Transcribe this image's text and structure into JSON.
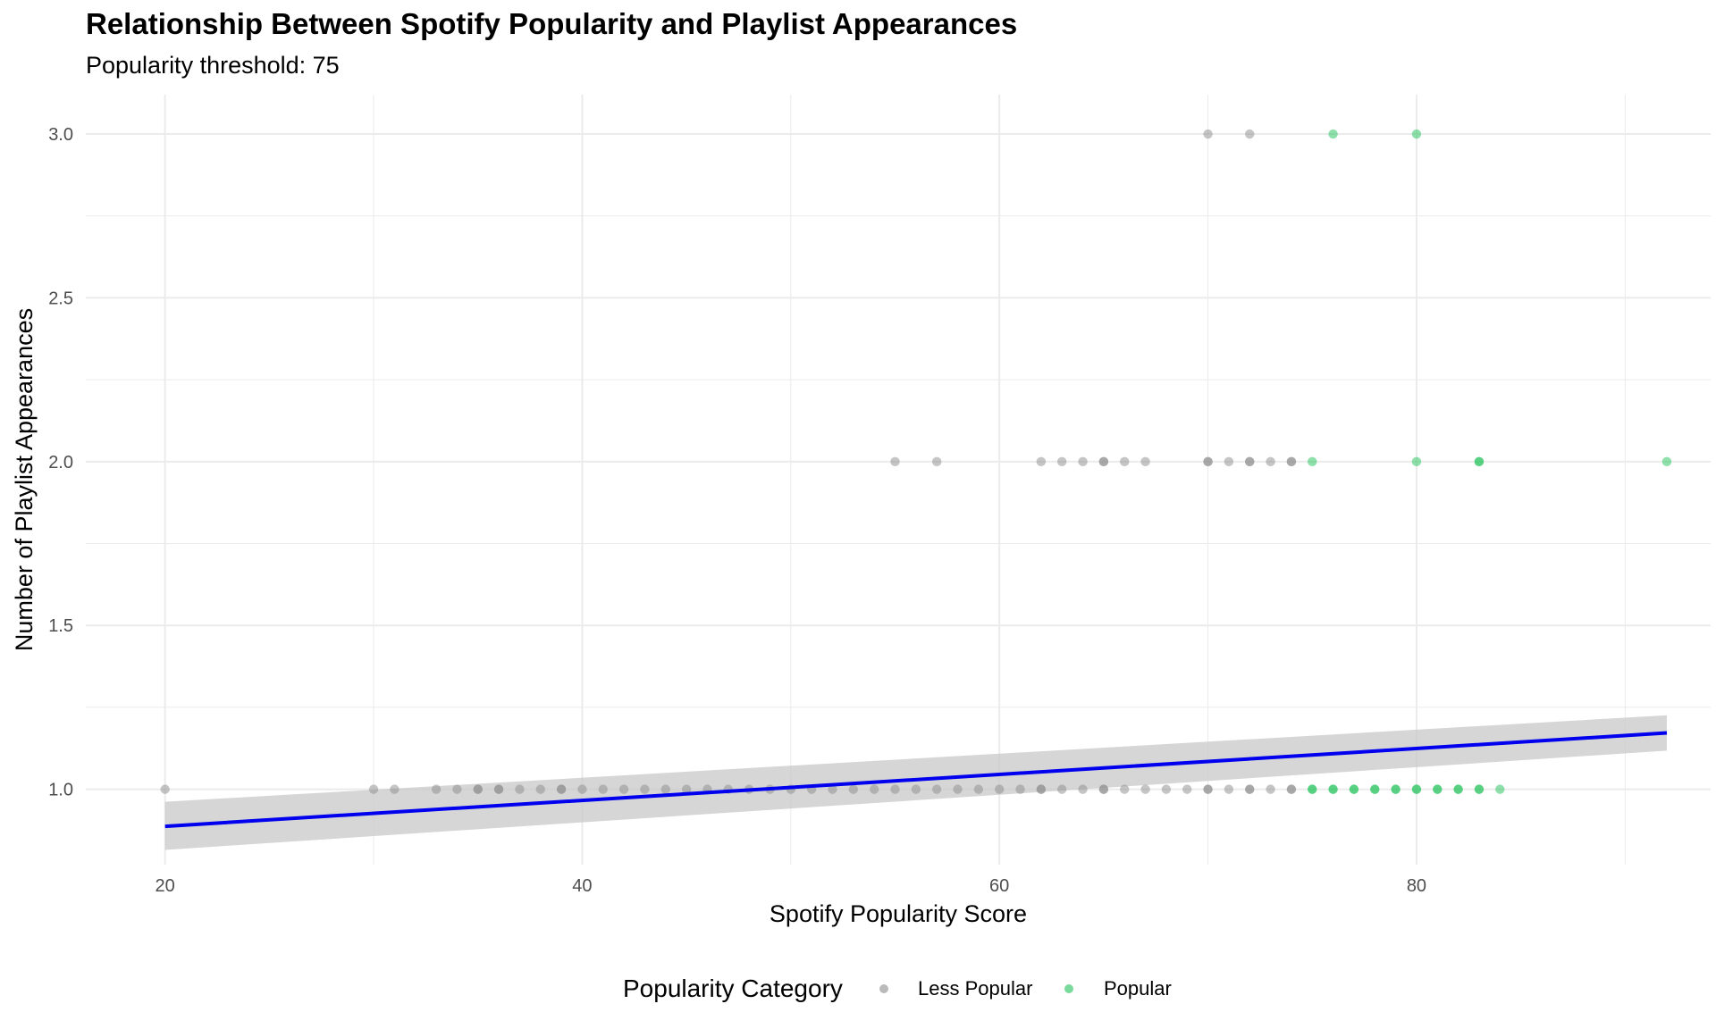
{
  "chart_data": {
    "type": "scatter",
    "title": "Relationship Between Spotify Popularity and Playlist Appearances",
    "subtitle": "Popularity threshold: 75",
    "xlabel": "Spotify Popularity Score",
    "ylabel": "Number of Playlist Appearances",
    "xlim": [
      16.2,
      94.1
    ],
    "ylim": [
      0.77,
      3.12
    ],
    "x_ticks": [
      20,
      40,
      60,
      80
    ],
    "x_tick_labels": [
      "20",
      "40",
      "60",
      "80"
    ],
    "y_ticks": [
      1.0,
      1.5,
      2.0,
      2.5,
      3.0
    ],
    "y_tick_labels": [
      "1.0",
      "1.5",
      "2.0",
      "2.5",
      "3.0"
    ],
    "grid": true,
    "legend": {
      "title": "Popularity Category",
      "position": "bottom",
      "entries": [
        "Less Popular",
        "Popular"
      ]
    },
    "colors": {
      "less_popular": "#8c8c8c",
      "popular": "#21c15a",
      "trend": "#0000ee",
      "band": "#c8c8c8",
      "grid": "#ebebeb"
    },
    "series": [
      {
        "name": "Less Popular",
        "points": [
          [
            20,
            1
          ],
          [
            30,
            1
          ],
          [
            31,
            1
          ],
          [
            33,
            1
          ],
          [
            34,
            1
          ],
          [
            35,
            1
          ],
          [
            35,
            1
          ],
          [
            36,
            1
          ],
          [
            36,
            1
          ],
          [
            37,
            1
          ],
          [
            38,
            1
          ],
          [
            39,
            1
          ],
          [
            39,
            1
          ],
          [
            40,
            1
          ],
          [
            41,
            1
          ],
          [
            42,
            1
          ],
          [
            43,
            1
          ],
          [
            44,
            1
          ],
          [
            45,
            1
          ],
          [
            46,
            1
          ],
          [
            47,
            1
          ],
          [
            48,
            1
          ],
          [
            49,
            1
          ],
          [
            50,
            1
          ],
          [
            51,
            1
          ],
          [
            52,
            1
          ],
          [
            53,
            1
          ],
          [
            54,
            1
          ],
          [
            55,
            1
          ],
          [
            56,
            1
          ],
          [
            57,
            1
          ],
          [
            58,
            1
          ],
          [
            59,
            1
          ],
          [
            60,
            1
          ],
          [
            61,
            1
          ],
          [
            62,
            1
          ],
          [
            62,
            1
          ],
          [
            63,
            1
          ],
          [
            64,
            1
          ],
          [
            65,
            1
          ],
          [
            65,
            1
          ],
          [
            66,
            1
          ],
          [
            67,
            1
          ],
          [
            68,
            1
          ],
          [
            69,
            1
          ],
          [
            70,
            1
          ],
          [
            70,
            1
          ],
          [
            71,
            1
          ],
          [
            72,
            1
          ],
          [
            72,
            1
          ],
          [
            73,
            1
          ],
          [
            74,
            1
          ],
          [
            74,
            1
          ],
          [
            55,
            2
          ],
          [
            57,
            2
          ],
          [
            62,
            2
          ],
          [
            63,
            2
          ],
          [
            64,
            2
          ],
          [
            65,
            2
          ],
          [
            65,
            2
          ],
          [
            66,
            2
          ],
          [
            67,
            2
          ],
          [
            70,
            2
          ],
          [
            70,
            2
          ],
          [
            71,
            2
          ],
          [
            72,
            2
          ],
          [
            72,
            2
          ],
          [
            73,
            2
          ],
          [
            74,
            2
          ],
          [
            74,
            2
          ],
          [
            70,
            3
          ],
          [
            72,
            3
          ]
        ]
      },
      {
        "name": "Popular",
        "points": [
          [
            75,
            1
          ],
          [
            75,
            1
          ],
          [
            76,
            1
          ],
          [
            76,
            1
          ],
          [
            77,
            1
          ],
          [
            77,
            1
          ],
          [
            78,
            1
          ],
          [
            78,
            1
          ],
          [
            79,
            1
          ],
          [
            79,
            1
          ],
          [
            80,
            1
          ],
          [
            80,
            1
          ],
          [
            81,
            1
          ],
          [
            81,
            1
          ],
          [
            82,
            1
          ],
          [
            82,
            1
          ],
          [
            83,
            1
          ],
          [
            83,
            1
          ],
          [
            84,
            1
          ],
          [
            75,
            2
          ],
          [
            80,
            2
          ],
          [
            83,
            2
          ],
          [
            83,
            2
          ],
          [
            92,
            2
          ],
          [
            76,
            3
          ],
          [
            80,
            3
          ]
        ]
      }
    ],
    "trend": {
      "x": [
        20,
        92
      ],
      "y": [
        0.887,
        1.172
      ],
      "band_lower": [
        0.815,
        1.118
      ],
      "band_upper": [
        0.962,
        1.226
      ]
    }
  }
}
